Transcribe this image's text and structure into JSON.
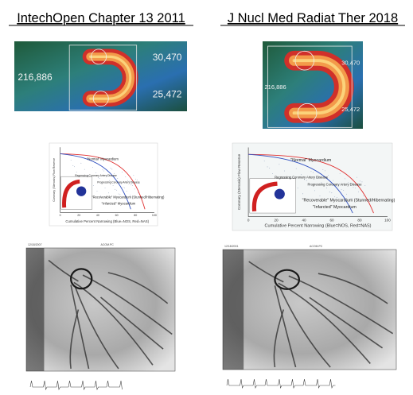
{
  "columns": [
    {
      "title": "IntechOpen Chapter 13 2011",
      "scan": {
        "labels": [
          "216,886",
          "30,470",
          "25,472"
        ]
      },
      "chart": {
        "y_axis_label": "Coronary (Stenosis) Flow Reserve",
        "x_axis_label": "Cumulative Percent Narrowing (Blue=NOS, Red=NAS)",
        "x_ticks": [
          "0",
          "20",
          "40",
          "60",
          "80",
          "100"
        ],
        "annotations": [
          "\"Normal\" Myocardium",
          "Regressing Coronary Artery Disease",
          "Progressing Coronary Artery Disease",
          "\"Recoverable\" Myocardium (Stunned/Hibernating)",
          "\"Infarcted\" Myocardium"
        ]
      },
      "angiogram": {
        "date": "12/18/2007",
        "site": "ACOM.PC"
      }
    },
    {
      "title": "J Nucl Med Radiat Ther 2018",
      "scan": {
        "labels": [
          "216,886",
          "30,470",
          "25,472"
        ]
      },
      "chart": {
        "y_axis_label": "Coronary (Stenosis) Flow Reserve",
        "x_axis_label": "Cumulative Percent Narrowing (Blue=NOS, Red=NAS)",
        "x_ticks": [
          "0",
          "20",
          "40",
          "60",
          "80",
          "100"
        ],
        "annotations": [
          "\"Normal\" Myocardium",
          "Regressing Coronary Artery Disease",
          "Progressing Coronary Artery Disease",
          "\"Recoverable\" Myocardium (Stunned/Hibernating)",
          "\"Infarcted\" Myocardium"
        ]
      },
      "angiogram": {
        "date": "12/18/2001",
        "site": "ACOM.PC"
      }
    }
  ]
}
